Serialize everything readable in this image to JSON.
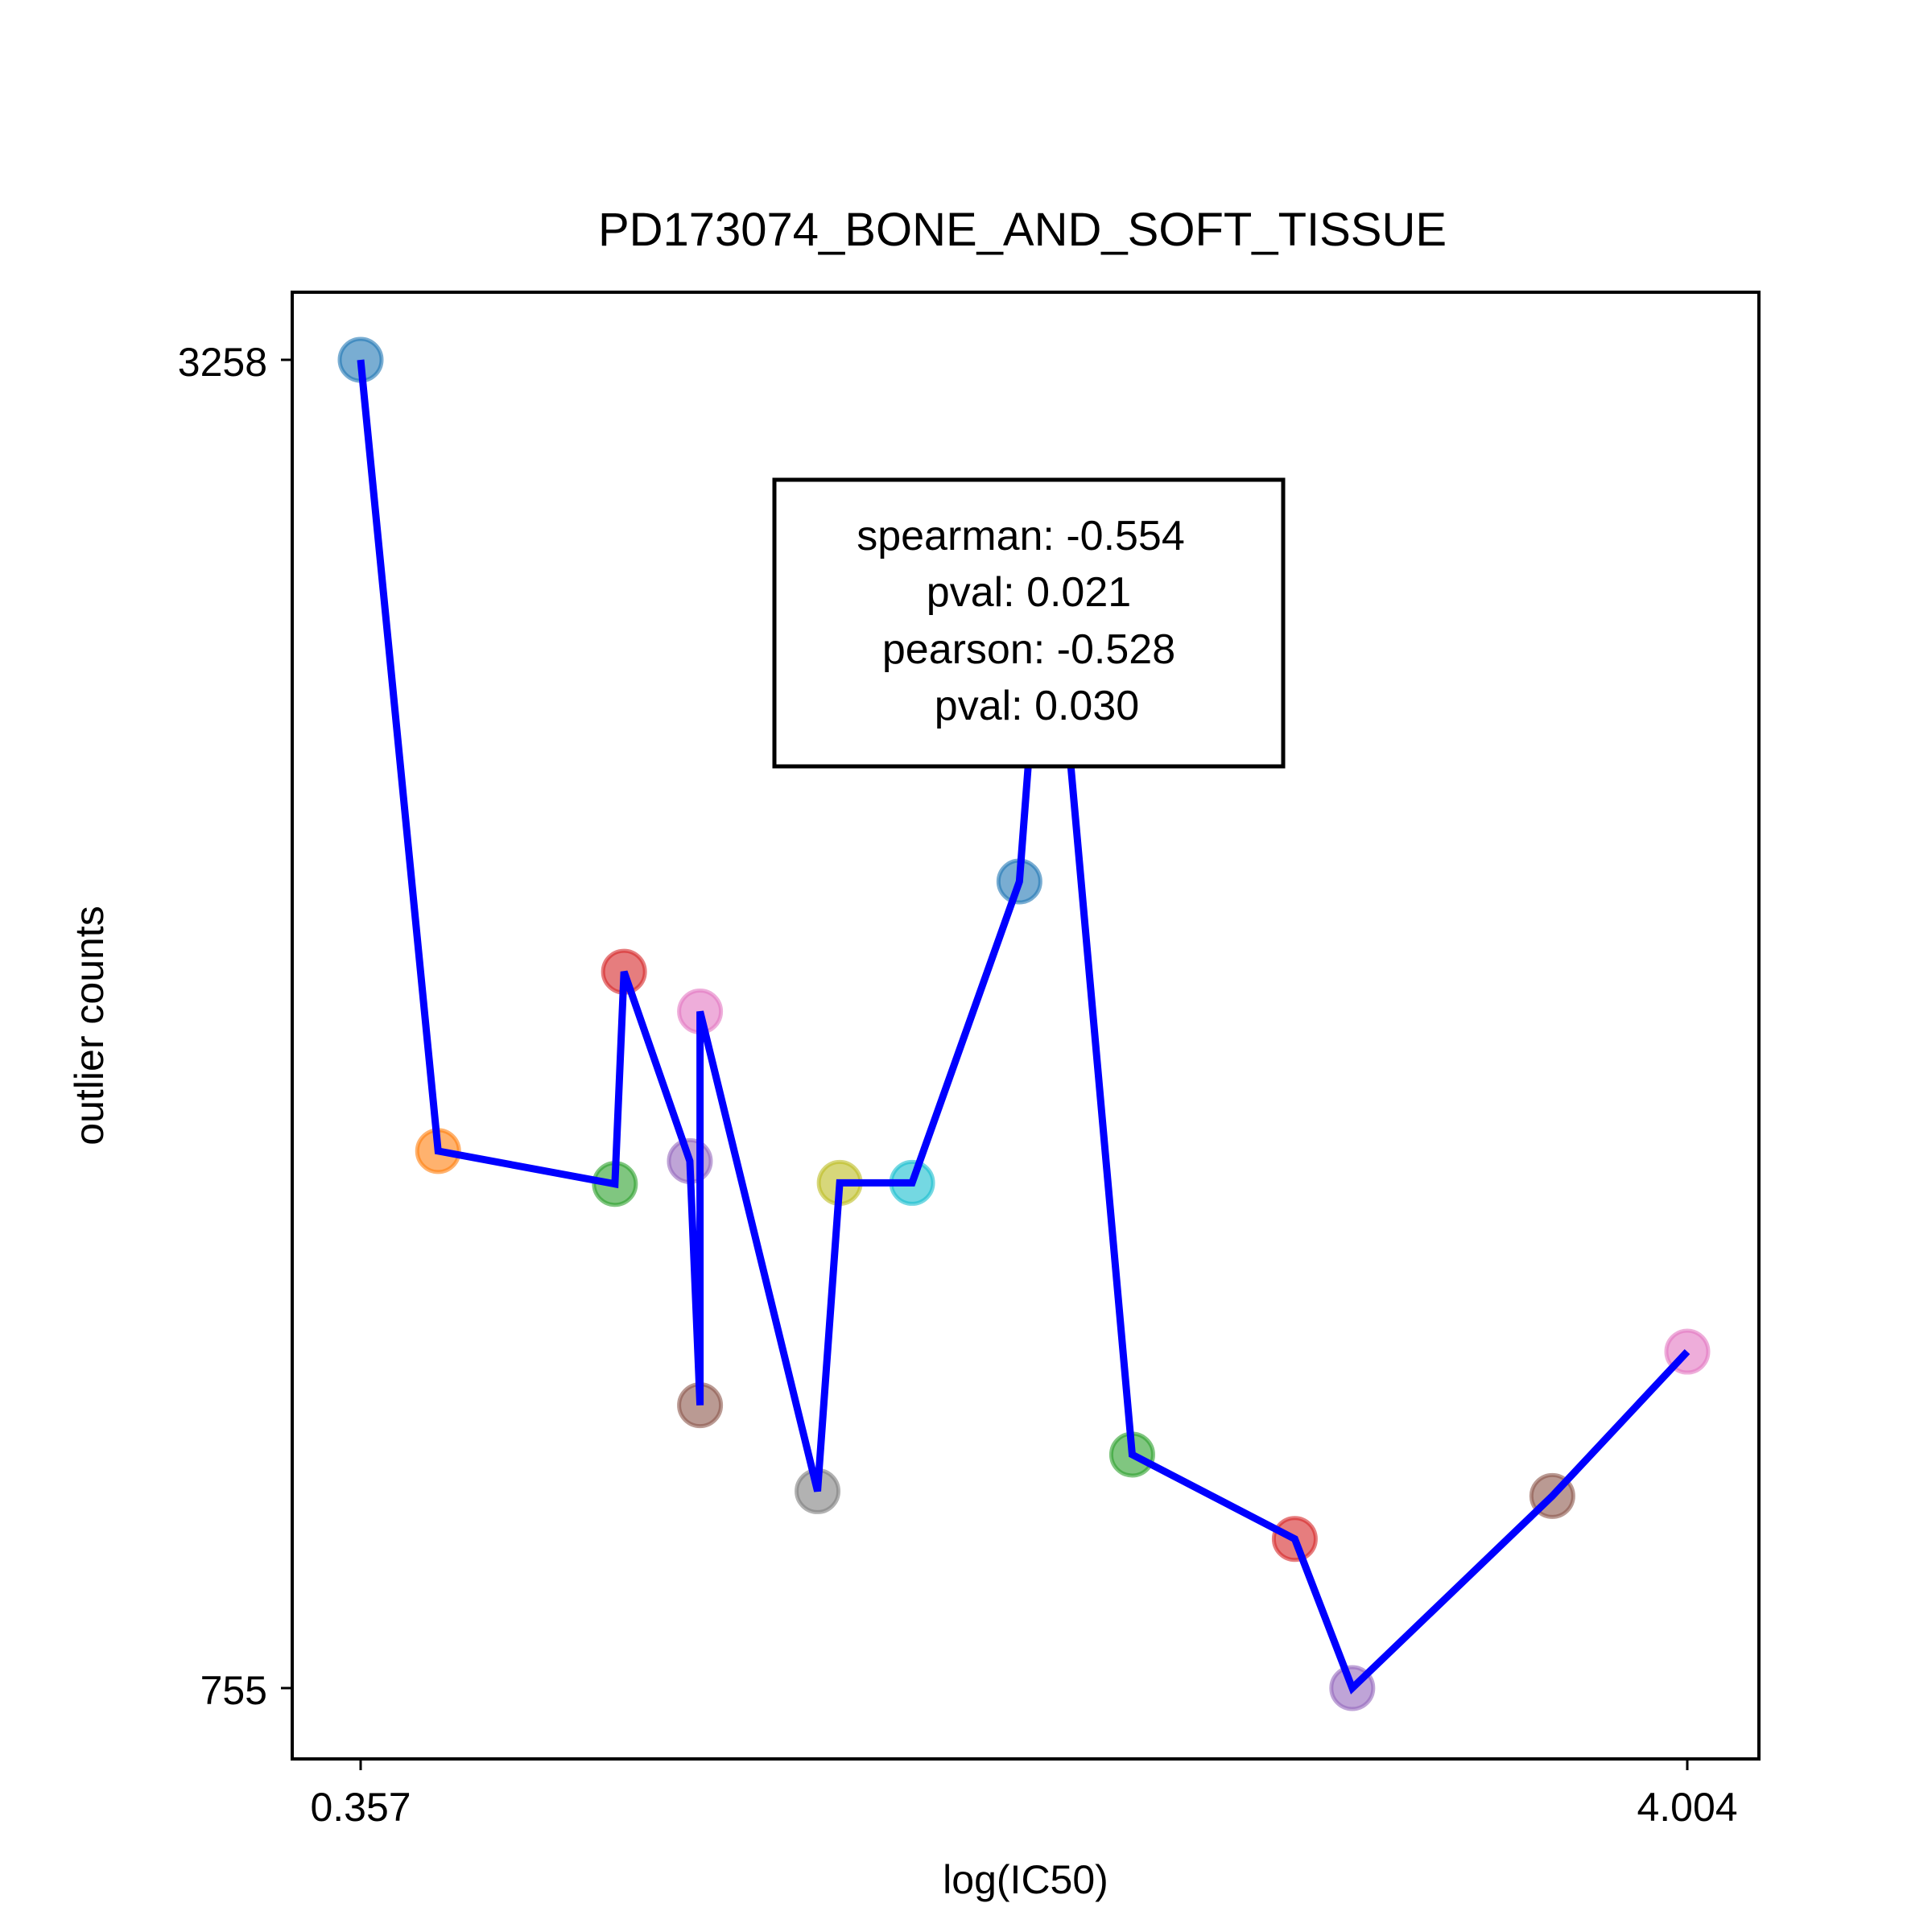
{
  "chart_data": {
    "type": "scatter",
    "title": "PD173074_BONE_AND_SOFT_TISSUE",
    "xlabel": "log(IC50)",
    "ylabel": "outlier counts",
    "xlim": [
      0.357,
      4.004
    ],
    "ylim": [
      755,
      3258
    ],
    "x_ticks": [
      "0.357",
      "4.004"
    ],
    "y_ticks": [
      "3258",
      "755"
    ],
    "grid": false,
    "legend": "none",
    "annotation": {
      "lines": [
        "spearman: -0.554",
        "pval: 0.021",
        "pearson: -0.528",
        "pval: 0.030"
      ]
    },
    "line_color": "#0000ff",
    "points": [
      {
        "x": 0.357,
        "y": 3258,
        "color": "#1f77b4"
      },
      {
        "x": 0.57,
        "y": 1767,
        "color": "#ff7f0e"
      },
      {
        "x": 1.056,
        "y": 1705,
        "color": "#2ca02c"
      },
      {
        "x": 1.081,
        "y": 2105,
        "color": "#d62728"
      },
      {
        "x": 1.262,
        "y": 1748,
        "color": "#9467bd"
      },
      {
        "x": 1.29,
        "y": 1288,
        "color": "#8c564b"
      },
      {
        "x": 1.29,
        "y": 2030,
        "color": "#e377c2"
      },
      {
        "x": 1.613,
        "y": 1126,
        "color": "#7f7f7f"
      },
      {
        "x": 1.674,
        "y": 1707,
        "color": "#bcbd22"
      },
      {
        "x": 1.873,
        "y": 1707,
        "color": "#17becf"
      },
      {
        "x": 2.168,
        "y": 2275,
        "color": "#1f77b4"
      },
      {
        "x": 2.246,
        "y": 2980,
        "color": "#ff7f0e"
      },
      {
        "x": 2.478,
        "y": 1195,
        "color": "#2ca02c"
      },
      {
        "x": 2.925,
        "y": 1036,
        "color": "#d62728"
      },
      {
        "x": 3.083,
        "y": 755,
        "color": "#9467bd"
      },
      {
        "x": 3.633,
        "y": 1117,
        "color": "#8c564b"
      },
      {
        "x": 4.004,
        "y": 1389,
        "color": "#e377c2"
      }
    ]
  }
}
